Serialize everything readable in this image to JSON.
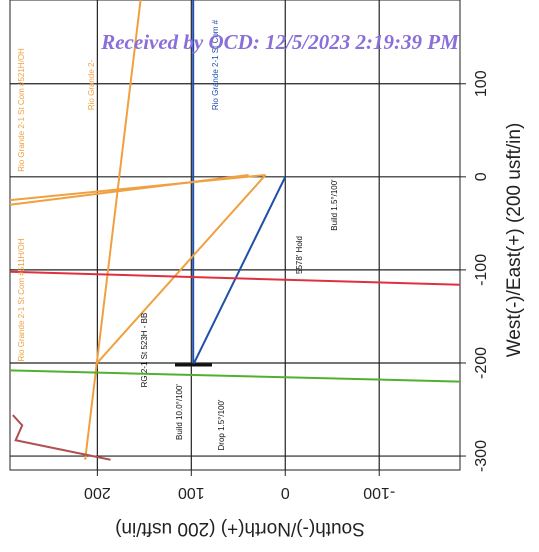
{
  "chart_data": {
    "type": "line",
    "watermark": "Received by OCD: 12/5/2023 2:19:39 PM",
    "xlabel": "South(-)/North(+) (200 usft/in)",
    "ylabel": "West(-)/East(+) (200 usft/in)",
    "xlim": [
      293,
      -186
    ],
    "ylim": [
      -315,
      190
    ],
    "xticks": [
      200,
      100,
      0,
      -100
    ],
    "yticks": [
      100,
      0,
      -100,
      -200,
      -300
    ],
    "grid": true,
    "series": [
      {
        "color": "#1f4fa8",
        "x": [
          0,
          98,
          98
        ],
        "values": [
          0,
          -202,
          190
        ]
      },
      {
        "color": "#f0a040",
        "x": [
          21,
          202
        ],
        "values": [
          2,
          -202
        ]
      },
      {
        "color": "#f0a040",
        "x": [
          21,
          293
        ],
        "values": [
          2,
          -25
        ]
      },
      {
        "color": "#f0a040",
        "x": [
          39,
          293
        ],
        "values": [
          2,
          -30
        ]
      },
      {
        "color": "#f0a040",
        "x": [
          154,
          213
        ],
        "values": [
          190,
          -304
        ]
      },
      {
        "color": "#e03040",
        "x": [
          293,
          -186
        ],
        "values": [
          -102,
          -116
        ]
      },
      {
        "color": "#50b030",
        "x": [
          293,
          -186
        ],
        "values": [
          -208,
          -220
        ]
      },
      {
        "color": "#b05050",
        "x": [
          290,
          280,
          287,
          186
        ],
        "values": [
          -256,
          -267,
          -283,
          -304
        ]
      }
    ],
    "annotations": [
      "Rio Grande 2-1 St Com #521H/OH",
      "Rio Grande 2-1 St Com #511H/OH",
      "Rio Grande 2-1 St Com #",
      "Rio Grande 2-",
      "RG 2-1 St 523H - BB",
      "Build 10.0°/100'",
      "Drop 1.5°/100'",
      "5578' Hold",
      "Build 1.5°/100'"
    ]
  }
}
